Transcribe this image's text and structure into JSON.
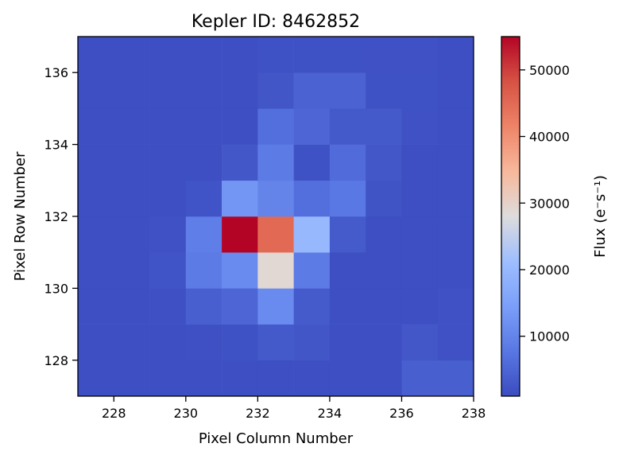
{
  "chart_data": {
    "type": "heatmap",
    "title": "Kepler ID: 8462852",
    "xlabel": "Pixel Column Number",
    "ylabel": "Pixel Row Number",
    "colorbar_label": "Flux (e⁻s⁻¹)",
    "colormap": "coolwarm",
    "x_range": [
      227,
      238
    ],
    "y_range": [
      127,
      137
    ],
    "x_ticks": [
      228,
      230,
      232,
      234,
      236,
      238
    ],
    "y_ticks": [
      128,
      130,
      132,
      134,
      136
    ],
    "colorbar_range": [
      1000,
      55000
    ],
    "colorbar_ticks": [
      10000,
      20000,
      30000,
      40000,
      50000
    ],
    "x_cells": [
      227,
      228,
      229,
      230,
      231,
      232,
      233,
      234,
      235,
      236,
      237
    ],
    "y_cells": [
      127,
      128,
      129,
      130,
      131,
      132,
      133,
      134,
      135,
      136
    ],
    "values": [
      [
        1500,
        1500,
        1500,
        1500,
        1500,
        1500,
        1500,
        1500,
        1500,
        4000,
        4000
      ],
      [
        1500,
        1500,
        1500,
        1600,
        2000,
        3000,
        2500,
        1500,
        1500,
        2800,
        1800
      ],
      [
        1500,
        1500,
        1700,
        4000,
        5000,
        11000,
        3200,
        1500,
        1500,
        1500,
        1800
      ],
      [
        1500,
        1500,
        2300,
        8500,
        11000,
        29000,
        8500,
        1500,
        1500,
        1500,
        1500
      ],
      [
        1500,
        1500,
        1800,
        9000,
        55000,
        45000,
        20000,
        3200,
        1500,
        1500,
        1500
      ],
      [
        1500,
        1500,
        1500,
        2300,
        13000,
        10000,
        6500,
        8000,
        2200,
        1500,
        1500
      ],
      [
        1500,
        1500,
        1500,
        1500,
        2800,
        8500,
        2000,
        6000,
        2800,
        1500,
        1500
      ],
      [
        1500,
        1500,
        1500,
        1500,
        1500,
        6500,
        5000,
        3000,
        3000,
        1800,
        1500
      ],
      [
        1500,
        1500,
        1500,
        1500,
        1500,
        2500,
        4500,
        4500,
        2000,
        2000,
        1500
      ],
      [
        1500,
        1500,
        1500,
        1500,
        1500,
        2000,
        2000,
        2000,
        1800,
        1800,
        1500
      ]
    ]
  }
}
